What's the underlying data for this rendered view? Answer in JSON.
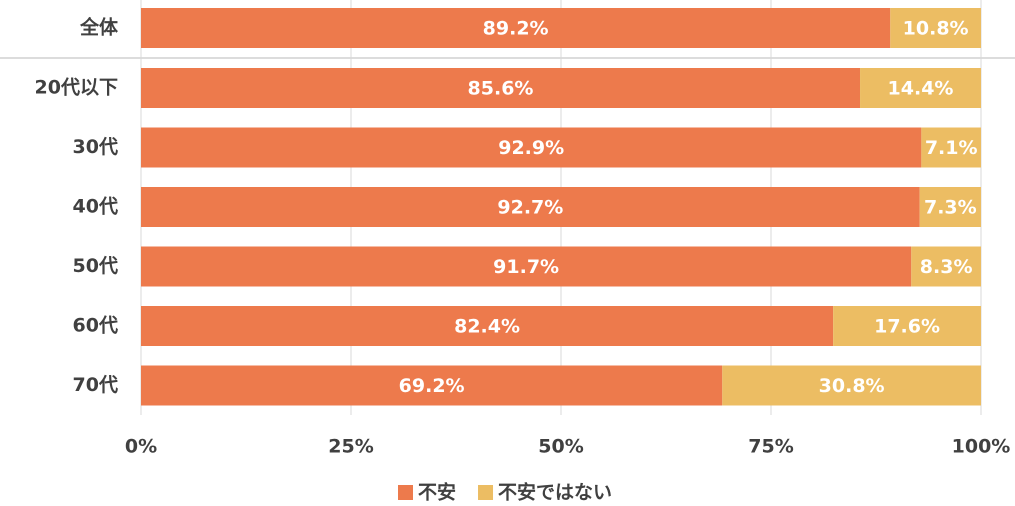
{
  "chart_data": {
    "type": "stacked-bar-horizontal",
    "categories": [
      "全体",
      "20代以下",
      "30代",
      "40代",
      "50代",
      "60代",
      "70代"
    ],
    "series": [
      {
        "name": "不安",
        "color": "#ed7a4c",
        "values": [
          89.2,
          85.6,
          92.9,
          92.7,
          91.7,
          82.4,
          69.2
        ],
        "value_labels": [
          "89.2%",
          "85.6%",
          "92.9%",
          "92.7%",
          "91.7%",
          "82.4%",
          "69.2%"
        ]
      },
      {
        "name": "不安ではない",
        "color": "#ecbd63",
        "values": [
          10.8,
          14.4,
          7.1,
          7.3,
          8.3,
          17.6,
          30.8
        ],
        "value_labels": [
          "10.8%",
          "14.4%",
          "7.1%",
          "7.3%",
          "8.3%",
          "17.6%",
          "30.8%"
        ]
      }
    ],
    "xlim": [
      0,
      100
    ],
    "xticks": [
      {
        "value": 0,
        "label": "0%"
      },
      {
        "value": 25,
        "label": "25%"
      },
      {
        "value": 50,
        "label": "50%"
      },
      {
        "value": 75,
        "label": "75%"
      },
      {
        "value": 100,
        "label": "100%"
      }
    ],
    "grid": true,
    "legend": "bottom"
  }
}
